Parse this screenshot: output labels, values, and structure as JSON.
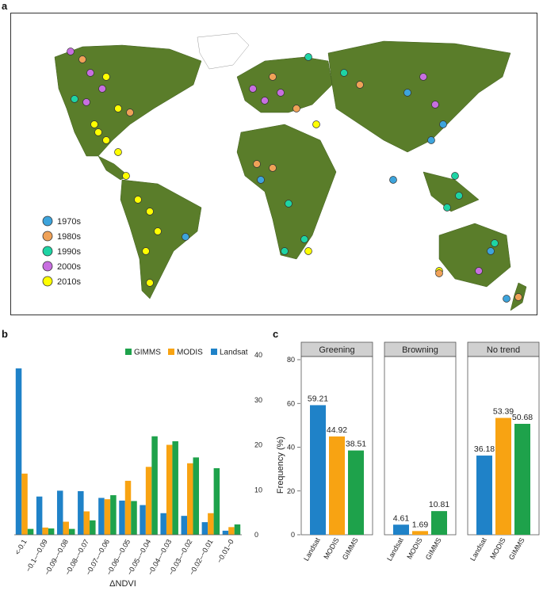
{
  "panels": {
    "a": "a",
    "b": "b",
    "c": "c"
  },
  "map": {
    "legend": [
      {
        "label": "1970s",
        "color": "#3da4dc"
      },
      {
        "label": "1980s",
        "color": "#f0a258"
      },
      {
        "label": "1990s",
        "color": "#1ed4a4"
      },
      {
        "label": "2000s",
        "color": "#c86fe0"
      },
      {
        "label": "2010s",
        "color": "#ffff00"
      }
    ]
  },
  "chart_data": [
    {
      "type": "bar",
      "panel": "b",
      "xlabel": "ΔNDVI",
      "ylabel": "",
      "ylim": [
        0,
        40
      ],
      "yticks": [
        0,
        10,
        20,
        30,
        40
      ],
      "categories": [
        "<-0.1",
        "−0.1–−0.09",
        "−0.09–−0.08",
        "−0.08–−0.07",
        "−0.07–−0.06",
        "−0.06–−0.05",
        "−0.05–−0.04",
        "−0.04–−0.03",
        "−0.03–−0.02",
        "−0.02–−0.01",
        "−0.01–0"
      ],
      "series": [
        {
          "name": "Landsat",
          "color": "#1f82c8",
          "values": [
            37,
            8.5,
            9.8,
            9.7,
            8.2,
            7.6,
            6.6,
            4.8,
            4.2,
            2.8,
            0.9
          ]
        },
        {
          "name": "MODIS",
          "color": "#f8a312",
          "values": [
            13.6,
            1.6,
            2.9,
            5.2,
            7.9,
            12,
            15.1,
            20,
            15.9,
            4.8,
            1.7
          ]
        },
        {
          "name": "GIMMS",
          "color": "#1ea24b",
          "values": [
            1.3,
            1.4,
            1.3,
            3.2,
            8.8,
            7.5,
            21.9,
            20.8,
            17.2,
            14.8,
            2.3
          ]
        }
      ],
      "legend": [
        "GIMMS",
        "MODIS",
        "Landsat"
      ],
      "legend_position": "top-right",
      "grid": false
    },
    {
      "type": "bar",
      "panel": "c",
      "xlabel": "",
      "ylabel": "Frequency (%)",
      "ylim": [
        0,
        80
      ],
      "yticks": [
        0,
        20,
        40,
        60,
        80
      ],
      "facets": [
        "Greening",
        "Browning",
        "No trend"
      ],
      "categories": [
        "Landsat",
        "MODIS",
        "GIMMS"
      ],
      "colors": [
        "#1f82c8",
        "#f8a312",
        "#1ea24b"
      ],
      "values": [
        [
          59.21,
          44.92,
          38.51
        ],
        [
          4.61,
          1.69,
          10.81
        ],
        [
          36.18,
          53.39,
          50.68
        ]
      ],
      "value_labels": [
        [
          "59.21",
          "44.92",
          "38.51"
        ],
        [
          "4.61",
          "1.69",
          "10.81"
        ],
        [
          "36.18",
          "53.39",
          "50.68"
        ]
      ],
      "grid": false
    }
  ]
}
